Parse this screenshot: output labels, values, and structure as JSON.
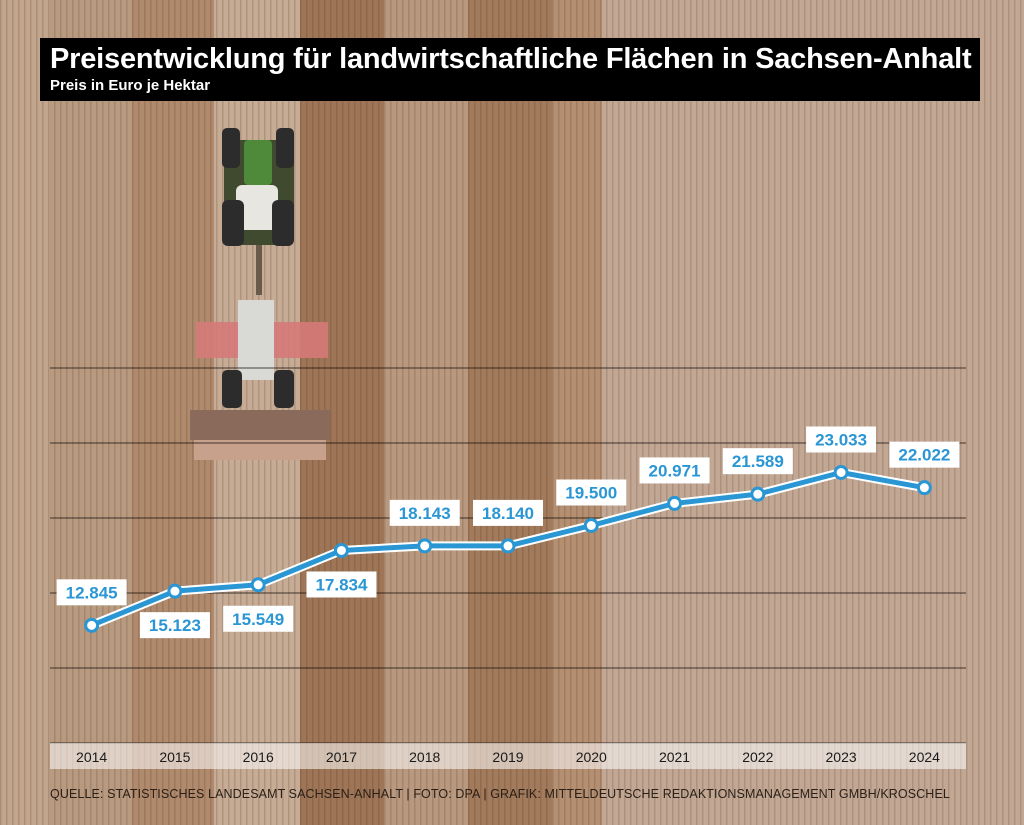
{
  "header": {
    "title": "Preisentwicklung für landwirtschaftliche Flächen in Sachsen-Anhalt",
    "subtitle": "Preis in Euro je Hektar"
  },
  "footer": {
    "source": "QUELLE: STATISTISCHES LANDESAMT SACHSEN-ANHALT | FOTO: DPA | GRAFIK: MITTELDEUTSCHE REDAKTIONSMANAGEMENT GMBH/KROSCHEL"
  },
  "colors": {
    "line": "#2a96d4",
    "label_background": "#ffffff",
    "title_background": "#000000"
  },
  "background_photo": "aerial-field-with-tractor",
  "chart_data": {
    "type": "line",
    "title": "Preisentwicklung für landwirtschaftliche Flächen in Sachsen-Anhalt",
    "subtitle": "Preis in Euro je Hektar",
    "categories": [
      "2014",
      "2015",
      "2016",
      "2017",
      "2018",
      "2019",
      "2020",
      "2021",
      "2022",
      "2023",
      "2024"
    ],
    "values": [
      12845,
      15123,
      15549,
      17834,
      18143,
      18140,
      19500,
      20971,
      21589,
      23033,
      22022
    ],
    "data_labels": [
      "12.845",
      "15.123",
      "15.549",
      "17.834",
      "18.143",
      "18.140",
      "19.500",
      "20.971",
      "21.589",
      "23.033",
      "22.022"
    ],
    "label_positions": [
      "above",
      "below",
      "below",
      "below",
      "above",
      "above",
      "above",
      "above",
      "above",
      "above",
      "above"
    ],
    "ylim": [
      5000,
      30000
    ],
    "grid": true,
    "xlabel": "",
    "ylabel": ""
  }
}
